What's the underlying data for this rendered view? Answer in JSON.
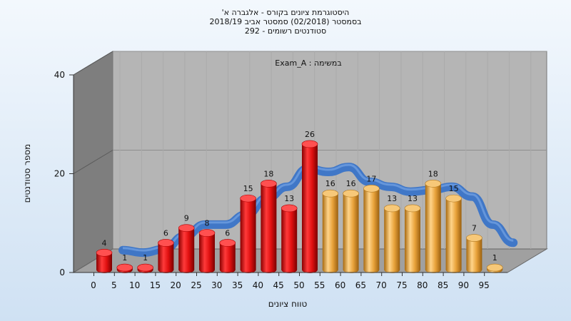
{
  "chart_data": {
    "type": "bar",
    "title_lines": [
      "היסטוגרמת ציונים בקורס - אלגברה א'",
      "בסמסטר  (02/2018)  סמסטר אביב 2018/19",
      "סטודנטים רשומים - 292"
    ],
    "annotation": "במשימה : Exam_A",
    "xlabel": "טווח ציונים",
    "ylabel": "מספר סטודנטים",
    "categories": [
      "0",
      "5",
      "10",
      "15",
      "20",
      "25",
      "30",
      "35",
      "40",
      "45",
      "50",
      "55",
      "60",
      "65",
      "70",
      "75",
      "80",
      "85",
      "90",
      "95"
    ],
    "values": [
      4,
      1,
      1,
      6,
      9,
      8,
      6,
      15,
      18,
      13,
      26,
      16,
      16,
      17,
      13,
      13,
      18,
      15,
      7,
      1
    ],
    "y_ticks": [
      "0",
      "20",
      "40"
    ],
    "ylim": [
      0,
      40
    ],
    "grid": true,
    "bar_colors": {
      "below_55": "#e01818",
      "from_55": "#e8a83c"
    },
    "trend_line_color": "#3a74c8",
    "background_color": "#ddeaf7"
  }
}
